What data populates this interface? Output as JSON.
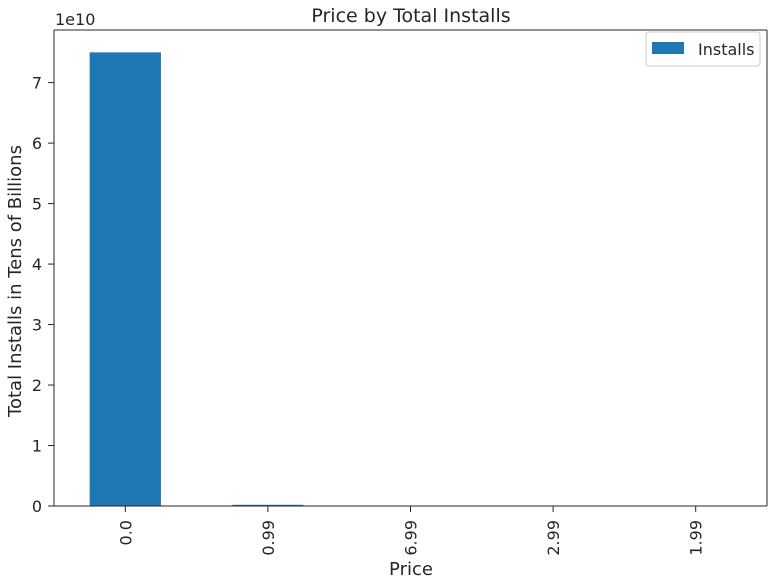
{
  "chart_data": {
    "type": "bar",
    "title": "Price by Total Installs",
    "xlabel": "Price",
    "ylabel": "Total Installs in Tens of Billions",
    "y_offset_text": "1e10",
    "categories": [
      "0.0",
      "0.99",
      "6.99",
      "2.99",
      "1.99"
    ],
    "series": [
      {
        "name": "Installs",
        "values": [
          75000000000,
          200000000,
          40000000,
          30000000,
          25000000
        ]
      }
    ],
    "ylim": [
      0,
      78700000000
    ],
    "yticks": [
      0,
      1,
      2,
      3,
      4,
      5,
      6,
      7
    ],
    "ytick_scale": 10000000000,
    "bar_color": "#1f77b4",
    "legend_position": "top-right",
    "grid": false
  }
}
